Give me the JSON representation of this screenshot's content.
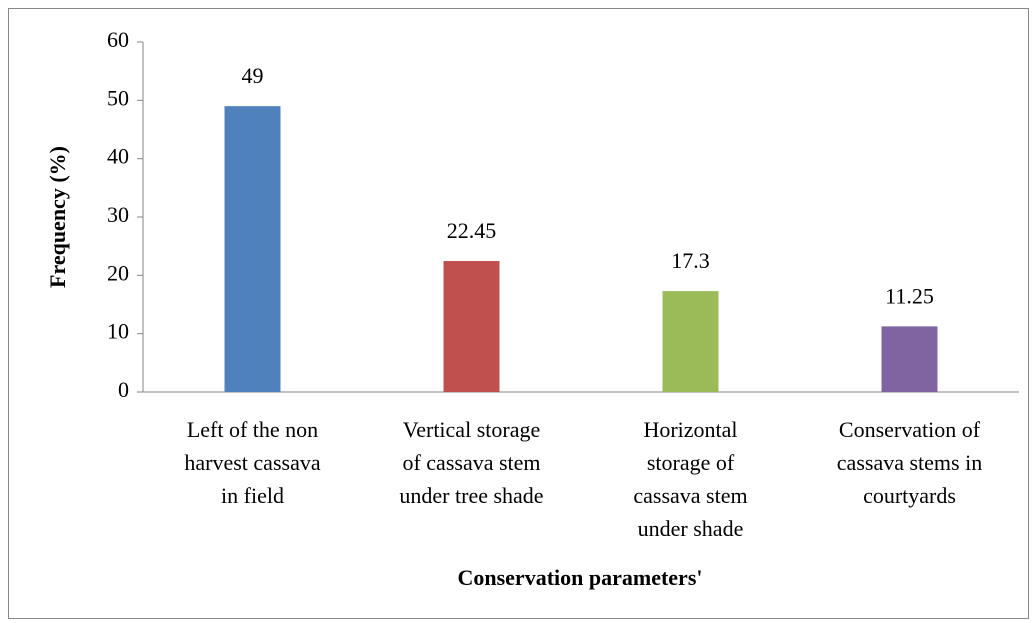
{
  "chart_data": {
    "type": "bar",
    "categories": [
      [
        "Left of the non",
        "harvest cassava",
        "in field"
      ],
      [
        "Vertical storage",
        "of cassava stem",
        "under tree shade"
      ],
      [
        "Horizontal",
        "storage of",
        "cassava stem",
        "under shade"
      ],
      [
        "Conservation of",
        "cassava stems in",
        "courtyards"
      ]
    ],
    "values": [
      49,
      22.45,
      17.3,
      11.25
    ],
    "colors": [
      "#4f81bd",
      "#c0504d",
      "#9bbb59",
      "#8064a2"
    ],
    "ylim": [
      0,
      60
    ],
    "yticks": [
      0,
      10,
      20,
      30,
      40,
      50,
      60
    ],
    "ylabel": "Frequency (%)",
    "xlabel": "Conservation parameters'"
  }
}
